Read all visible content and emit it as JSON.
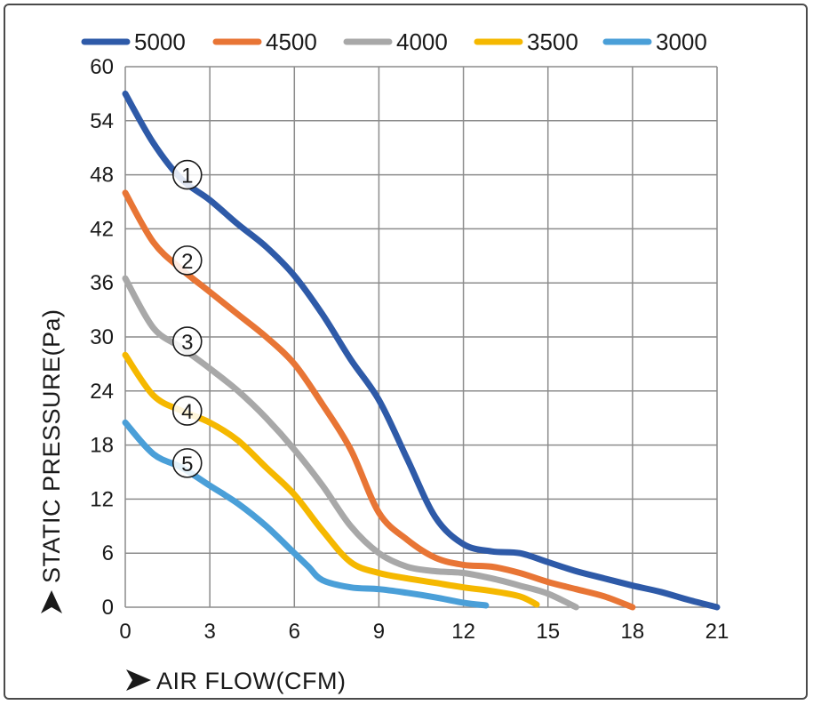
{
  "chart_data": {
    "type": "line",
    "title": "",
    "xlabel": "AIR FLOW(CFM)",
    "ylabel": "STATIC PRESSURE(Pa)",
    "xlim": [
      0,
      21
    ],
    "ylim": [
      0,
      60
    ],
    "x_ticks": [
      0,
      3,
      6,
      9,
      12,
      15,
      18,
      21
    ],
    "y_ticks": [
      0,
      6,
      12,
      18,
      24,
      30,
      36,
      42,
      48,
      54,
      60
    ],
    "grid": true,
    "legend_position": "top",
    "series": [
      {
        "name": "5000",
        "color": "#2e5aa8",
        "marker": "①",
        "marker_at": [
          2.2,
          48
        ],
        "points": [
          [
            0,
            57
          ],
          [
            1,
            51.5
          ],
          [
            2,
            47.5
          ],
          [
            3,
            45.2
          ],
          [
            4,
            42.5
          ],
          [
            5,
            40
          ],
          [
            6,
            36.8
          ],
          [
            7,
            32.5
          ],
          [
            8,
            27.5
          ],
          [
            9,
            23
          ],
          [
            10,
            16.5
          ],
          [
            11,
            10
          ],
          [
            12,
            7
          ],
          [
            13,
            6.2
          ],
          [
            14,
            6
          ],
          [
            15,
            5
          ],
          [
            16,
            4
          ],
          [
            17,
            3.2
          ],
          [
            18,
            2.4
          ],
          [
            19,
            1.7
          ],
          [
            20,
            0.8
          ],
          [
            21,
            0
          ]
        ]
      },
      {
        "name": "4500",
        "color": "#e87535",
        "marker": "②",
        "marker_at": [
          2.2,
          38.5
        ],
        "points": [
          [
            0,
            46
          ],
          [
            1,
            40.5
          ],
          [
            2,
            37.5
          ],
          [
            3,
            35
          ],
          [
            4,
            32.5
          ],
          [
            5,
            30
          ],
          [
            6,
            27
          ],
          [
            7,
            22.5
          ],
          [
            8,
            17.5
          ],
          [
            9,
            10.5
          ],
          [
            10,
            7.5
          ],
          [
            11,
            5.5
          ],
          [
            12,
            4.7
          ],
          [
            13,
            4.5
          ],
          [
            14,
            3.8
          ],
          [
            15,
            2.8
          ],
          [
            16,
            2
          ],
          [
            17,
            1.2
          ],
          [
            18,
            0
          ]
        ]
      },
      {
        "name": "4000",
        "color": "#a8a8a8",
        "marker": "③",
        "marker_at": [
          2.2,
          29.5
        ],
        "points": [
          [
            0,
            36.5
          ],
          [
            1,
            31
          ],
          [
            2,
            28.8
          ],
          [
            3,
            26.5
          ],
          [
            4,
            24
          ],
          [
            5,
            21
          ],
          [
            6,
            17.5
          ],
          [
            7,
            13.5
          ],
          [
            8,
            9
          ],
          [
            9,
            6
          ],
          [
            10,
            4.5
          ],
          [
            11,
            4
          ],
          [
            12,
            3.8
          ],
          [
            13,
            3.2
          ],
          [
            14,
            2.4
          ],
          [
            15,
            1.5
          ],
          [
            16,
            0
          ]
        ]
      },
      {
        "name": "3500",
        "color": "#f5b800",
        "marker": "④",
        "marker_at": [
          2.2,
          21.8
        ],
        "points": [
          [
            0,
            28
          ],
          [
            1,
            23.5
          ],
          [
            2,
            21.8
          ],
          [
            3,
            20.5
          ],
          [
            4,
            18.5
          ],
          [
            5,
            15.5
          ],
          [
            6,
            12.5
          ],
          [
            7,
            8.5
          ],
          [
            8,
            5
          ],
          [
            9,
            3.8
          ],
          [
            10,
            3.2
          ],
          [
            11,
            2.7
          ],
          [
            12,
            2.2
          ],
          [
            13,
            1.8
          ],
          [
            14,
            1.2
          ],
          [
            14.6,
            0.3
          ]
        ]
      },
      {
        "name": "3000",
        "color": "#4a9fd8",
        "marker": "⑤",
        "marker_at": [
          2.2,
          16
        ],
        "points": [
          [
            0,
            20.5
          ],
          [
            1,
            17
          ],
          [
            2,
            15.5
          ],
          [
            3,
            13.5
          ],
          [
            4,
            11.5
          ],
          [
            5,
            9
          ],
          [
            6,
            6
          ],
          [
            6.5,
            4.5
          ],
          [
            7,
            3
          ],
          [
            8,
            2.2
          ],
          [
            9,
            2
          ],
          [
            10,
            1.6
          ],
          [
            11,
            1.1
          ],
          [
            12,
            0.5
          ],
          [
            12.8,
            0.2
          ]
        ]
      }
    ]
  }
}
